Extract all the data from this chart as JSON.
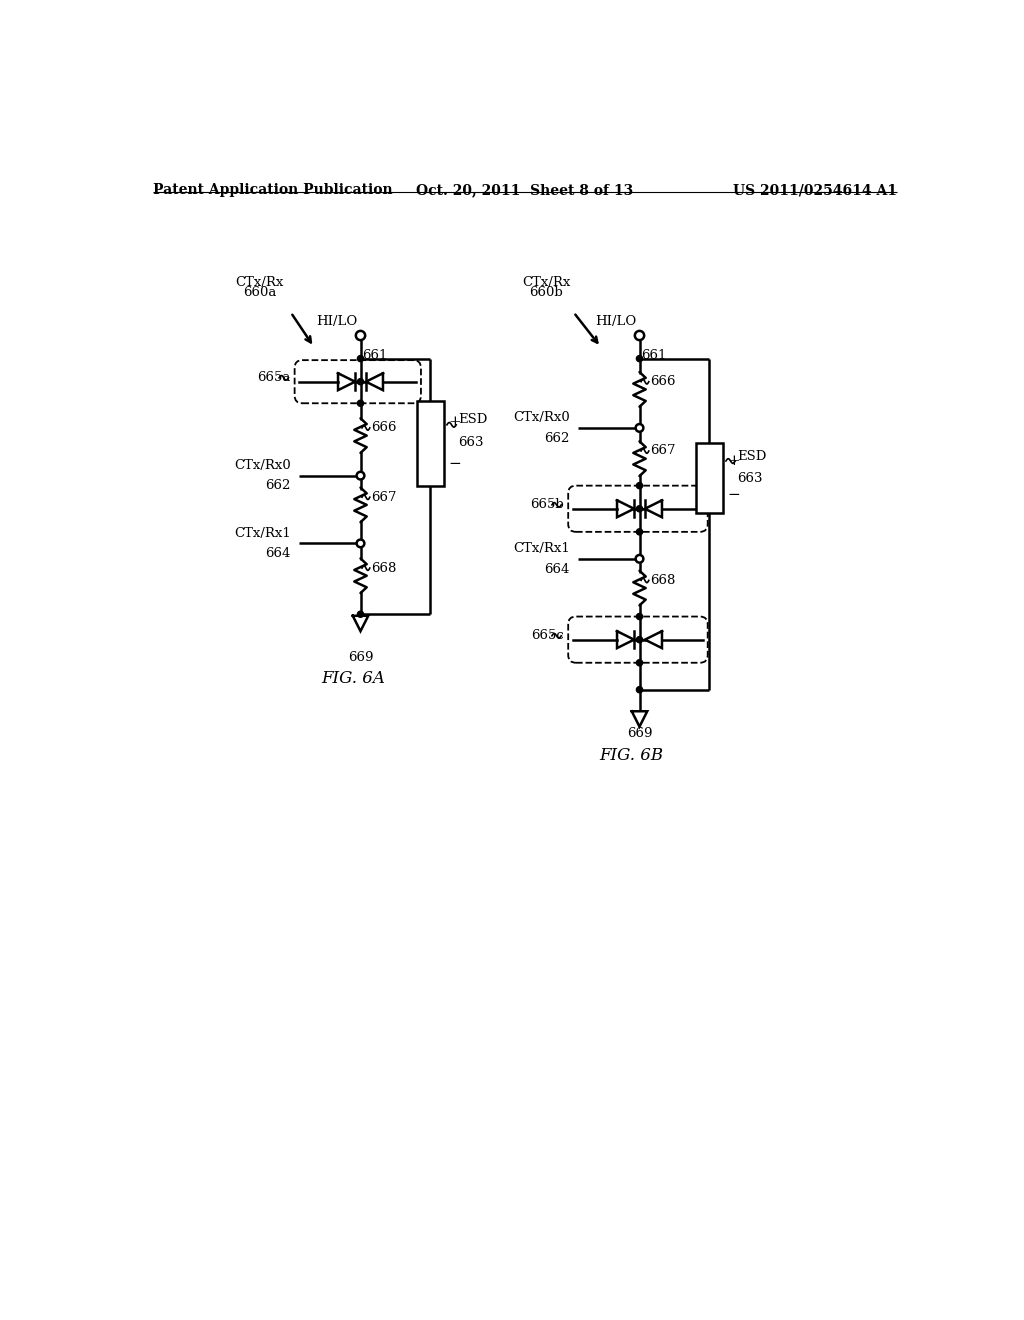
{
  "background_color": "#ffffff",
  "header_left": "Patent Application Publication",
  "header_center": "Oct. 20, 2011  Sheet 8 of 13",
  "header_right": "US 2011/0254614 A1",
  "fig6a_label": "FIG. 6A",
  "fig6b_label": "FIG. 6B",
  "line_color": "#000000",
  "line_width": 1.8,
  "font_size_header": 10,
  "font_size_label": 9.5
}
